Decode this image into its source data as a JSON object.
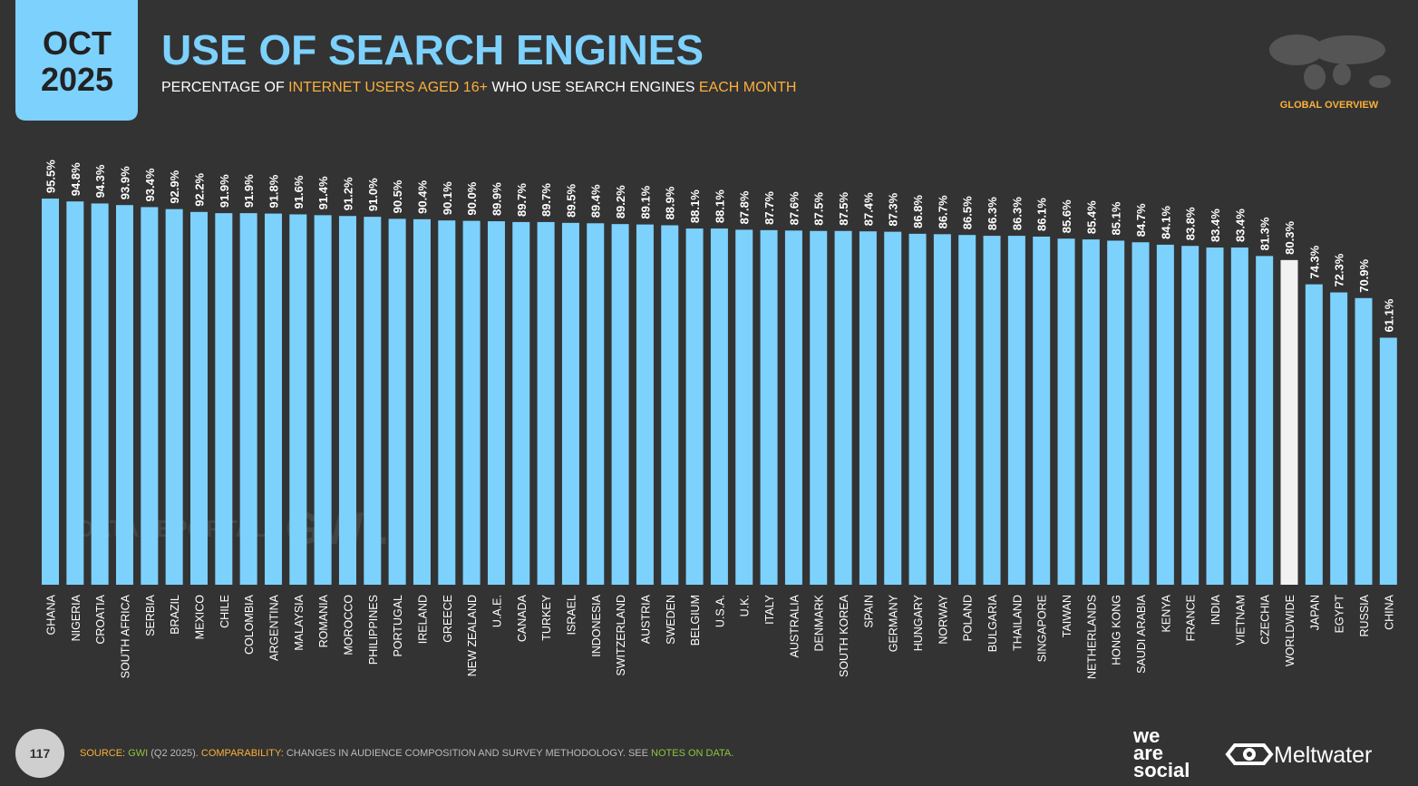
{
  "header": {
    "month": "OCT",
    "year": "2025",
    "title": "USE OF SEARCH ENGINES",
    "subtitle": [
      {
        "text": "PERCENTAGE OF ",
        "color": "#ffffff"
      },
      {
        "text": "INTERNET USERS AGED 16+",
        "color": "#fbb03b"
      },
      {
        "text": " WHO USE SEARCH ENGINES ",
        "color": "#ffffff"
      },
      {
        "text": "EACH MONTH",
        "color": "#fbb03b"
      }
    ],
    "badge": "GLOBAL OVERVIEW"
  },
  "watermarks": [
    "DATAREPORTAL",
    "GWI."
  ],
  "chart_data": {
    "type": "bar",
    "categories": [
      "GHANA",
      "NIGERIA",
      "CROATIA",
      "SOUTH AFRICA",
      "SERBIA",
      "BRAZIL",
      "MEXICO",
      "CHILE",
      "COLOMBIA",
      "ARGENTINA",
      "MALAYSIA",
      "ROMANIA",
      "MOROCCO",
      "PHILIPPINES",
      "PORTUGAL",
      "IRELAND",
      "GREECE",
      "NEW ZEALAND",
      "U.A.E.",
      "CANADA",
      "TURKEY",
      "ISRAEL",
      "INDONESIA",
      "SWITZERLAND",
      "AUSTRIA",
      "SWEDEN",
      "BELGIUM",
      "U.S.A.",
      "U.K.",
      "ITALY",
      "AUSTRALIA",
      "DENMARK",
      "SOUTH KOREA",
      "SPAIN",
      "GERMANY",
      "HUNGARY",
      "NORWAY",
      "POLAND",
      "BULGARIA",
      "THAILAND",
      "SINGAPORE",
      "TAIWAN",
      "NETHERLANDS",
      "HONG KONG",
      "SAUDI ARABIA",
      "KENYA",
      "FRANCE",
      "INDIA",
      "VIETNAM",
      "CZECHIA",
      "WORLDWIDE",
      "JAPAN",
      "EGYPT",
      "RUSSIA",
      "CHINA"
    ],
    "values": [
      95.5,
      94.8,
      94.3,
      93.9,
      93.4,
      92.9,
      92.2,
      91.9,
      91.9,
      91.8,
      91.6,
      91.4,
      91.2,
      91.0,
      90.5,
      90.4,
      90.1,
      90.0,
      89.9,
      89.7,
      89.7,
      89.5,
      89.4,
      89.2,
      89.1,
      88.9,
      88.1,
      88.1,
      87.8,
      87.7,
      87.6,
      87.5,
      87.5,
      87.4,
      87.3,
      86.8,
      86.7,
      86.5,
      86.3,
      86.3,
      86.1,
      85.6,
      85.4,
      85.1,
      84.7,
      84.1,
      83.8,
      83.4,
      83.4,
      81.3,
      80.3,
      74.3,
      72.3,
      70.9,
      61.1
    ],
    "value_labels": [
      "95.5%",
      "94.8%",
      "94.3%",
      "93.9%",
      "93.4%",
      "92.9%",
      "92.2%",
      "91.9%",
      "91.9%",
      "91.8%",
      "91.6%",
      "91.4%",
      "91.2%",
      "91.0%",
      "90.5%",
      "90.4%",
      "90.1%",
      "90.0%",
      "89.9%",
      "89.7%",
      "89.7%",
      "89.5%",
      "89.4%",
      "89.2%",
      "89.1%",
      "88.9%",
      "88.1%",
      "88.1%",
      "87.8%",
      "87.7%",
      "87.6%",
      "87.5%",
      "87.5%",
      "87.4%",
      "87.3%",
      "86.8%",
      "86.7%",
      "86.5%",
      "86.3%",
      "86.3%",
      "86.1%",
      "85.6%",
      "85.4%",
      "85.1%",
      "84.7%",
      "84.1%",
      "83.8%",
      "83.4%",
      "83.4%",
      "81.3%",
      "80.3%",
      "74.3%",
      "72.3%",
      "70.9%",
      "61.1%"
    ],
    "colors": [
      "#7dd1fd",
      "#7dd1fd",
      "#7dd1fd",
      "#7dd1fd",
      "#7dd1fd",
      "#7dd1fd",
      "#7dd1fd",
      "#7dd1fd",
      "#7dd1fd",
      "#7dd1fd",
      "#7dd1fd",
      "#7dd1fd",
      "#7dd1fd",
      "#7dd1fd",
      "#7dd1fd",
      "#7dd1fd",
      "#7dd1fd",
      "#7dd1fd",
      "#7dd1fd",
      "#7dd1fd",
      "#7dd1fd",
      "#7dd1fd",
      "#7dd1fd",
      "#7dd1fd",
      "#7dd1fd",
      "#7dd1fd",
      "#7dd1fd",
      "#7dd1fd",
      "#7dd1fd",
      "#7dd1fd",
      "#7dd1fd",
      "#7dd1fd",
      "#7dd1fd",
      "#7dd1fd",
      "#7dd1fd",
      "#7dd1fd",
      "#7dd1fd",
      "#7dd1fd",
      "#7dd1fd",
      "#7dd1fd",
      "#7dd1fd",
      "#7dd1fd",
      "#7dd1fd",
      "#7dd1fd",
      "#7dd1fd",
      "#7dd1fd",
      "#7dd1fd",
      "#7dd1fd",
      "#7dd1fd",
      "#7dd1fd",
      "#f2f2f2",
      "#7dd1fd",
      "#7dd1fd",
      "#7dd1fd",
      "#7dd1fd"
    ],
    "ylim": [
      0,
      100
    ]
  },
  "footer": {
    "page": "117",
    "source": [
      {
        "text": "SOURCE: ",
        "color": "#fbb03b"
      },
      {
        "text": "GWI",
        "color": "#8cc63f"
      },
      {
        "text": " (Q2 2025). ",
        "color": "#bbbbbb"
      },
      {
        "text": "COMPARABILITY: ",
        "color": "#fbb03b"
      },
      {
        "text": "CHANGES IN AUDIENCE COMPOSITION AND SURVEY METHODOLOGY. SEE ",
        "color": "#bbbbbb"
      },
      {
        "text": "NOTES ON DATA.",
        "color": "#8cc63f"
      }
    ],
    "logo_lines": [
      "we",
      "are",
      "social"
    ],
    "logo2": "Meltwater"
  }
}
